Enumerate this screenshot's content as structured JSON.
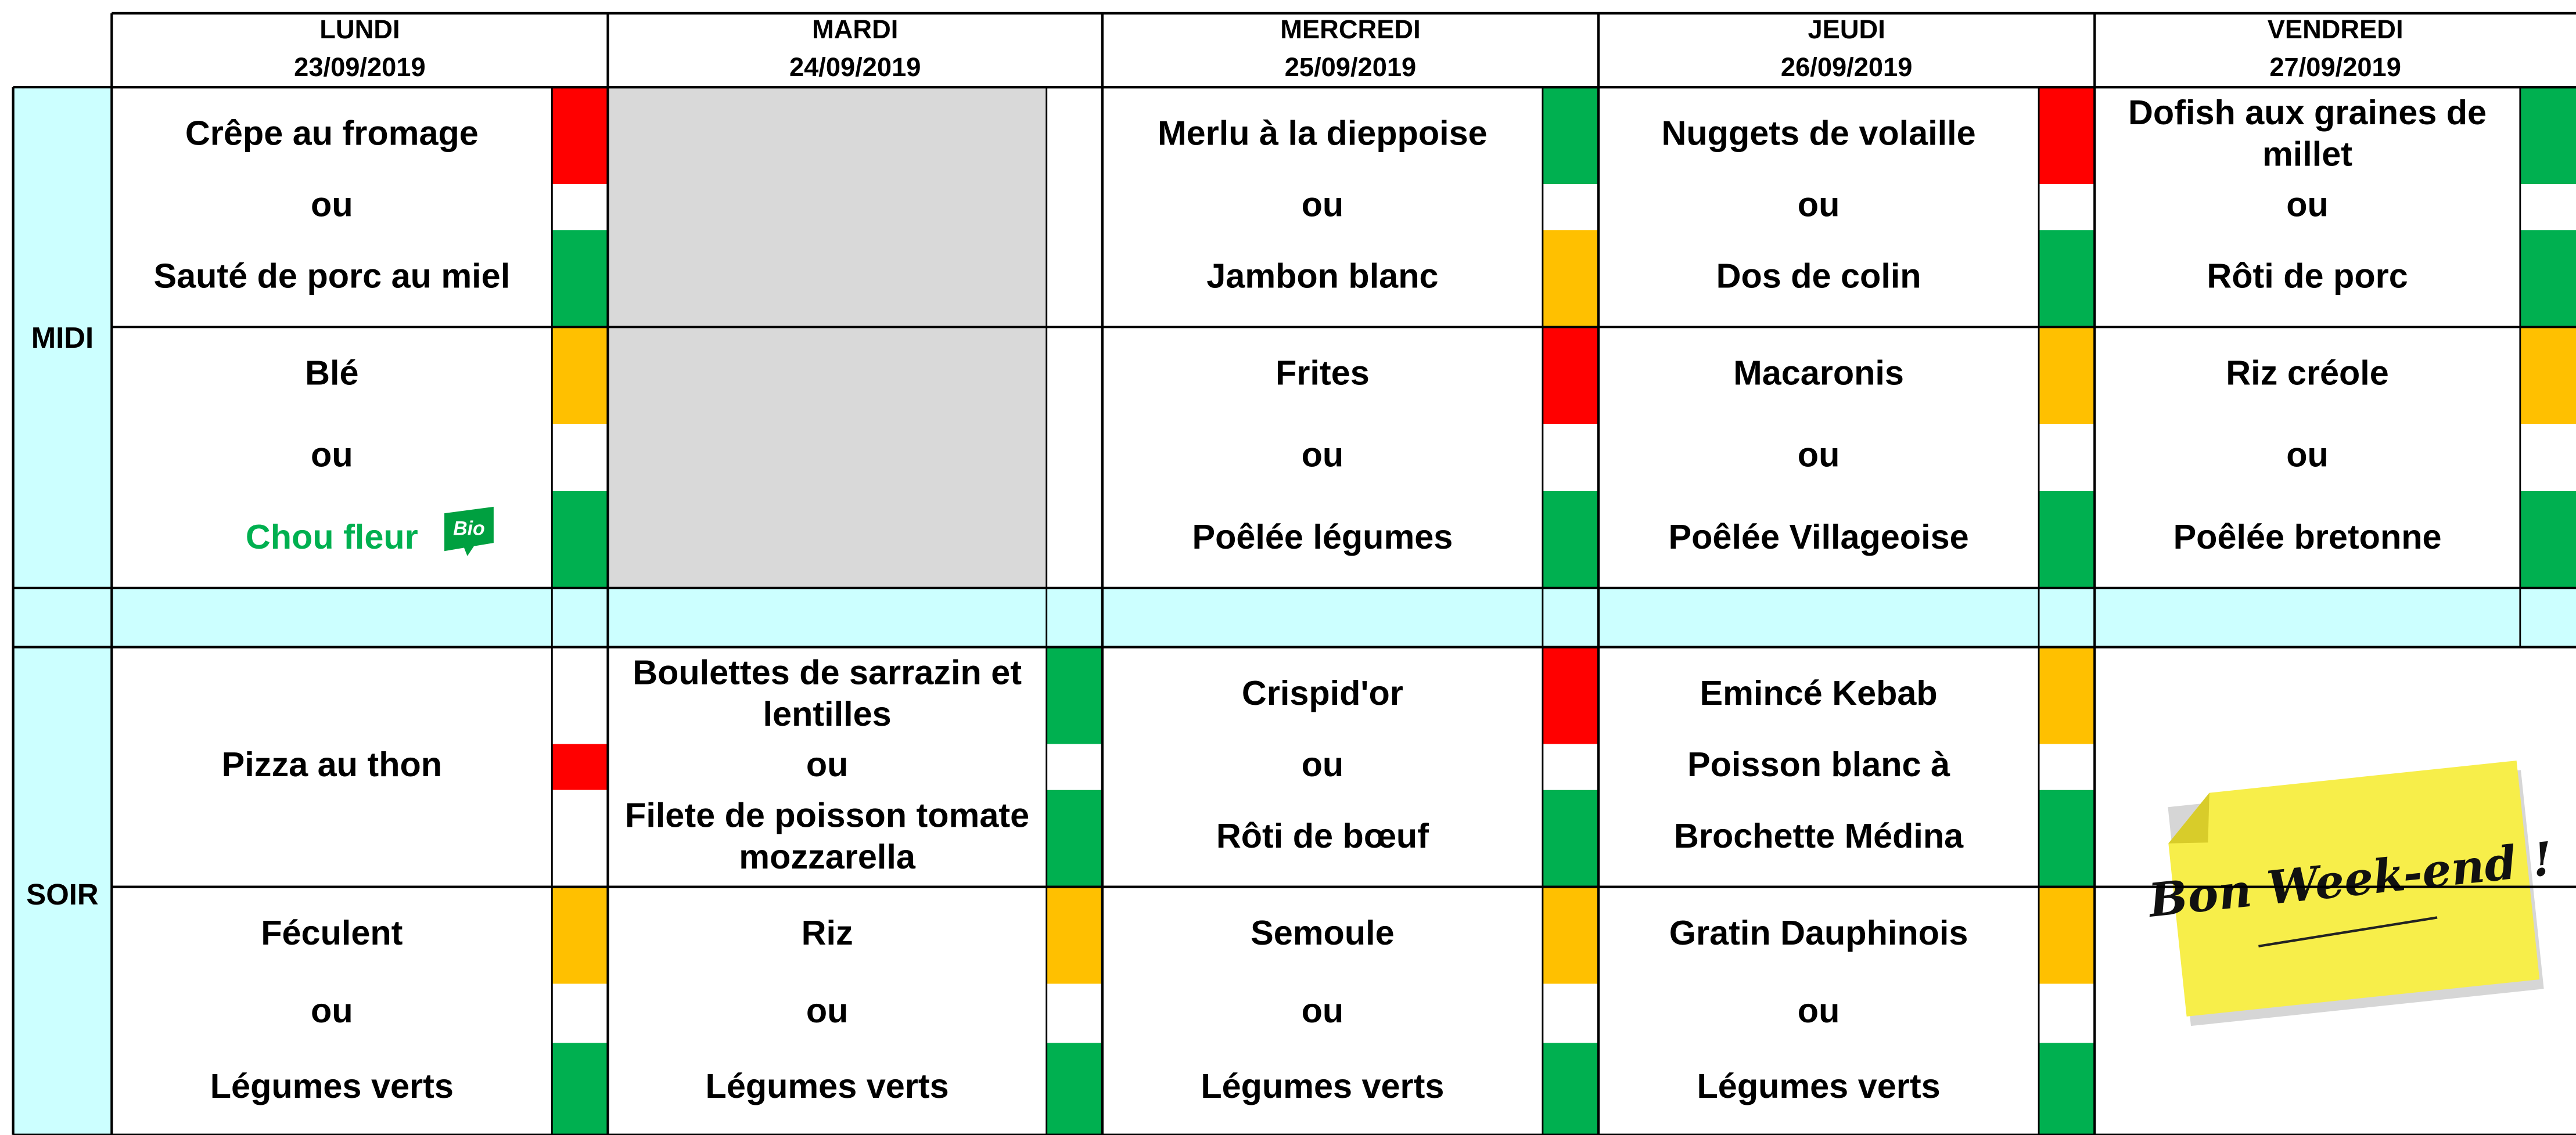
{
  "meals": [
    "MIDI",
    "SOIR"
  ],
  "days": [
    {
      "name": "LUNDI",
      "date": "23/09/2019",
      "midi": {
        "main": {
          "lines": [
            "Crêpe au fromage",
            "ou",
            "Sauté de porc au miel"
          ],
          "colors": [
            "#ff0000",
            "#ffffff",
            "#00b050"
          ]
        },
        "side": {
          "lines": [
            "Blé",
            "ou",
            {
              "text": "Chou fleur",
              "color": "#00b050",
              "badge": "Bio"
            }
          ],
          "colors": [
            "#ffc000",
            "#ffffff",
            "#00b050"
          ]
        }
      },
      "soir": {
        "main": {
          "lines": [
            "Pizza au thon"
          ],
          "colors": [
            "#ffffff",
            "#ff0000",
            "#ffffff"
          ]
        },
        "side": {
          "lines": [
            "Féculent",
            "ou",
            "Légumes verts"
          ],
          "colors": [
            "#ffc000",
            "#ffffff",
            "#00b050"
          ]
        }
      }
    },
    {
      "name": "MARDI",
      "date": "24/09/2019",
      "midi": {
        "fill": "#d9d9d9",
        "colors": [
          "#ffffff"
        ]
      },
      "soir": {
        "main": {
          "lines": [
            "Boulettes de sarrazin et lentilles",
            "ou",
            "Filete de poisson tomate mozzarella"
          ],
          "colors": [
            "#00b050",
            "#ffffff",
            "#00b050"
          ]
        },
        "side": {
          "lines": [
            "Riz",
            "ou",
            "Légumes verts"
          ],
          "colors": [
            "#ffc000",
            "#ffffff",
            "#00b050"
          ]
        }
      }
    },
    {
      "name": "MERCREDI",
      "date": "25/09/2019",
      "midi": {
        "main": {
          "lines": [
            "Merlu à la dieppoise",
            "ou",
            "Jambon blanc"
          ],
          "colors": [
            "#00b050",
            "#ffffff",
            "#ffc000"
          ]
        },
        "side": {
          "lines": [
            "Frites",
            "ou",
            "Poêlée légumes"
          ],
          "colors": [
            "#ff0000",
            "#ffffff",
            "#00b050"
          ]
        }
      },
      "soir": {
        "main": {
          "lines": [
            "Crispid'or",
            "ou",
            "Rôti de bœuf"
          ],
          "colors": [
            "#ff0000",
            "#ffffff",
            "#00b050"
          ]
        },
        "side": {
          "lines": [
            "Semoule",
            "ou",
            "Légumes verts"
          ],
          "colors": [
            "#ffc000",
            "#ffffff",
            "#00b050"
          ]
        }
      }
    },
    {
      "name": "JEUDI",
      "date": "26/09/2019",
      "midi": {
        "main": {
          "lines": [
            "Nuggets de volaille",
            "ou",
            "Dos de colin"
          ],
          "colors": [
            "#ff0000",
            "#ffffff",
            "#00b050"
          ]
        },
        "side": {
          "lines": [
            "Macaronis",
            "ou",
            "Poêlée Villageoise"
          ],
          "colors": [
            "#ffc000",
            "#ffffff",
            "#00b050"
          ]
        }
      },
      "soir": {
        "main": {
          "lines": [
            "Emincé Kebab",
            "Poisson blanc à",
            "Brochette Médina"
          ],
          "colors": [
            "#ffc000",
            "#ffffff",
            "#00b050"
          ]
        },
        "side": {
          "lines": [
            "Gratin Dauphinois",
            "ou",
            "Légumes verts"
          ],
          "colors": [
            "#ffc000",
            "#ffffff",
            "#00b050"
          ]
        }
      }
    },
    {
      "name": "VENDREDI",
      "date": "27/09/2019",
      "midi": {
        "main": {
          "lines": [
            "Dofish aux graines de millet",
            "ou",
            "Rôti de porc"
          ],
          "colors": [
            "#00b050",
            "#ffffff",
            "#00b050"
          ]
        },
        "side": {
          "lines": [
            "Riz créole",
            "ou",
            "Poêlée bretonne"
          ],
          "colors": [
            "#ffc000",
            "#ffffff",
            "#00b050"
          ]
        }
      },
      "soir": {
        "note": "Bon Week-end !"
      }
    }
  ]
}
